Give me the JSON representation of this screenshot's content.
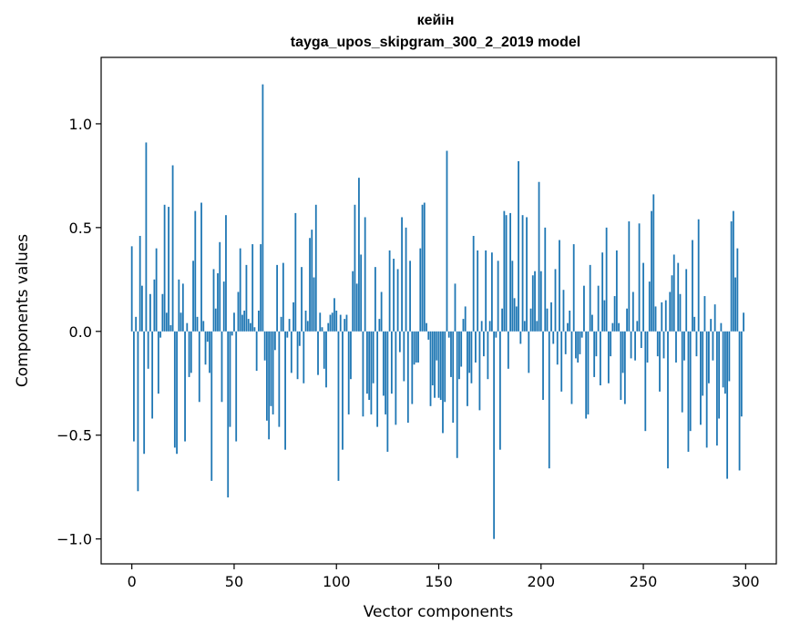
{
  "chart_data": {
    "type": "bar",
    "title": "кейін",
    "subtitle": "tayga_upos_skipgram_300_2_2019 model",
    "xlabel": "Vector components",
    "ylabel": "Components values",
    "xlim": [
      -15,
      315
    ],
    "ylim": [
      -1.12,
      1.32
    ],
    "xticks": [
      0,
      50,
      100,
      150,
      200,
      250,
      300
    ],
    "xtick_labels": [
      "0",
      "50",
      "100",
      "150",
      "200",
      "250",
      "300"
    ],
    "yticks": [
      -1.0,
      -0.5,
      0.0,
      0.5,
      1.0
    ],
    "ytick_labels": [
      "−1.0",
      "−0.5",
      "0.0",
      "0.5",
      "1.0"
    ],
    "grid": false,
    "color": "#1f77b4",
    "values": [
      0.41,
      -0.53,
      0.07,
      -0.77,
      0.46,
      0.22,
      -0.59,
      0.91,
      -0.18,
      0.18,
      -0.42,
      0.25,
      0.4,
      -0.3,
      -0.03,
      0.18,
      0.61,
      0.09,
      0.6,
      0.03,
      0.8,
      -0.56,
      -0.59,
      0.25,
      0.09,
      0.23,
      -0.53,
      0.04,
      -0.22,
      -0.2,
      0.34,
      0.58,
      0.07,
      -0.34,
      0.62,
      0.05,
      -0.16,
      -0.05,
      -0.2,
      -0.72,
      0.3,
      0.11,
      0.28,
      0.43,
      -0.34,
      0.24,
      0.56,
      -0.8,
      -0.46,
      -0.02,
      0.09,
      -0.53,
      0.19,
      0.4,
      0.08,
      0.1,
      0.32,
      0.06,
      0.04,
      0.42,
      0.02,
      -0.19,
      0.1,
      0.42,
      1.19,
      -0.14,
      -0.43,
      -0.52,
      -0.36,
      -0.4,
      -0.09,
      0.32,
      -0.46,
      0.07,
      0.33,
      -0.57,
      -0.03,
      0.06,
      -0.2,
      0.14,
      0.57,
      -0.23,
      -0.07,
      0.31,
      -0.25,
      0.1,
      0.05,
      0.45,
      0.49,
      0.26,
      0.61,
      -0.21,
      0.09,
      0.02,
      -0.18,
      -0.27,
      0.04,
      0.08,
      0.09,
      0.16,
      0.1,
      -0.72,
      0.08,
      -0.57,
      0.06,
      0.08,
      -0.4,
      -0.23,
      0.29,
      0.61,
      0.23,
      0.74,
      0.37,
      -0.41,
      0.55,
      -0.3,
      -0.33,
      -0.4,
      -0.25,
      0.31,
      -0.46,
      0.06,
      0.19,
      -0.31,
      -0.4,
      -0.58,
      0.39,
      -0.3,
      0.35,
      -0.45,
      0.3,
      -0.1,
      0.55,
      -0.24,
      0.5,
      -0.44,
      0.34,
      -0.35,
      -0.16,
      -0.15,
      -0.15,
      0.4,
      0.61,
      0.62,
      0.04,
      -0.04,
      -0.36,
      -0.26,
      -0.32,
      -0.14,
      -0.32,
      -0.33,
      -0.49,
      -0.34,
      0.87,
      -0.03,
      -0.22,
      -0.44,
      0.23,
      -0.61,
      -0.23,
      -0.17,
      0.06,
      0.12,
      -0.36,
      -0.2,
      -0.25,
      0.46,
      -0.15,
      0.39,
      -0.38,
      0.05,
      -0.12,
      0.39,
      -0.23,
      0.05,
      0.38,
      -1.0,
      -0.03,
      0.34,
      -0.57,
      0.11,
      0.58,
      0.56,
      -0.18,
      0.57,
      0.34,
      0.16,
      0.12,
      0.82,
      -0.06,
      0.56,
      0.05,
      0.55,
      -0.2,
      0.11,
      0.27,
      0.29,
      0.05,
      0.72,
      0.29,
      -0.33,
      0.5,
      0.11,
      -0.66,
      0.14,
      -0.06,
      0.3,
      -0.16,
      0.44,
      -0.29,
      0.2,
      -0.11,
      0.04,
      0.1,
      -0.35,
      0.42,
      -0.13,
      -0.15,
      -0.11,
      -0.03,
      0.22,
      -0.42,
      -0.4,
      0.32,
      0.08,
      -0.22,
      -0.12,
      0.22,
      -0.26,
      0.38,
      0.15,
      0.5,
      -0.25,
      -0.12,
      0.04,
      0.17,
      0.39,
      0.04,
      -0.33,
      -0.2,
      -0.35,
      0.11,
      0.53,
      -0.13,
      0.19,
      -0.14,
      0.05,
      0.52,
      -0.08,
      0.33,
      -0.48,
      -0.15,
      0.24,
      0.58,
      0.66,
      0.12,
      -0.12,
      -0.29,
      0.14,
      -0.13,
      0.15,
      -0.66,
      0.19,
      0.27,
      0.37,
      -0.15,
      0.33,
      0.18,
      -0.39,
      -0.14,
      0.3,
      -0.58,
      -0.48,
      0.44,
      0.07,
      -0.12,
      0.54,
      -0.45,
      -0.31,
      0.17,
      -0.56,
      -0.25,
      0.06,
      -0.14,
      0.13,
      -0.55,
      -0.42,
      0.04,
      -0.27,
      -0.3,
      -0.71,
      -0.24,
      0.53,
      0.58,
      0.26,
      0.4,
      -0.67,
      -0.41,
      0.09
    ]
  }
}
